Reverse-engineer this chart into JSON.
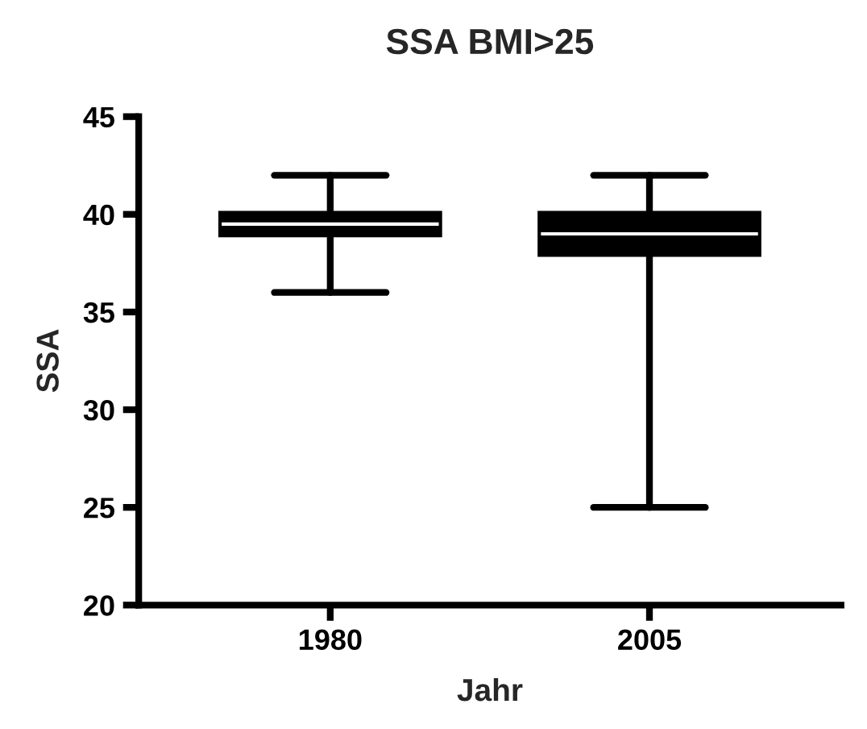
{
  "chart_data": {
    "type": "box",
    "title": "SSA BMI>25",
    "xlabel": "Jahr",
    "ylabel": "SSA",
    "categories": [
      "1980",
      "2005"
    ],
    "boxes": [
      {
        "low": 36,
        "q1": 39,
        "median": 39.5,
        "q3": 40,
        "high": 42
      },
      {
        "low": 25,
        "q1": 38,
        "median": 39,
        "q3": 40,
        "high": 42
      }
    ],
    "colors": [
      "#000000",
      "#000000"
    ],
    "ylim": [
      20,
      45
    ],
    "yticks": [
      20,
      25,
      30,
      35,
      40,
      45
    ],
    "grid": false
  }
}
